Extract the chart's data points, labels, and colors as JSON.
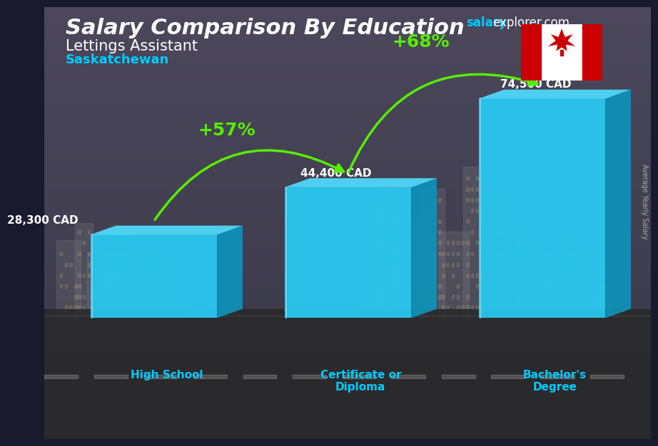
{
  "title_main": "Salary Comparison By Education",
  "subtitle1": "Lettings Assistant",
  "subtitle2": "Saskatchewan",
  "watermark_salary": "salary",
  "watermark_rest": "explorer.com",
  "side_label": "Average Yearly Salary",
  "categories": [
    "High School",
    "Certificate or\nDiploma",
    "Bachelor's\nDegree"
  ],
  "values": [
    28300,
    44400,
    74500
  ],
  "value_labels": [
    "28,300 CAD",
    "44,400 CAD",
    "74,500 CAD"
  ],
  "pct_labels": [
    "+57%",
    "+68%"
  ],
  "bar_front_color": "#29c8f0",
  "bar_side_color": "#1090b8",
  "bar_top_color": "#50d8f8",
  "arrow_color": "#55ee00",
  "title_color": "#ffffff",
  "subtitle1_color": "#ffffff",
  "subtitle2_color": "#00ccff",
  "label_color": "#ffffff",
  "cat_color": "#00ccff",
  "watermark_salary_color": "#00ccff",
  "watermark_rest_color": "#ffffff",
  "side_label_color": "#aaaaaa",
  "ylim": [
    0,
    88000
  ],
  "bar_width": 0.38,
  "bar_depth": 0.06,
  "x_positions": [
    0.18,
    0.5,
    0.82
  ]
}
